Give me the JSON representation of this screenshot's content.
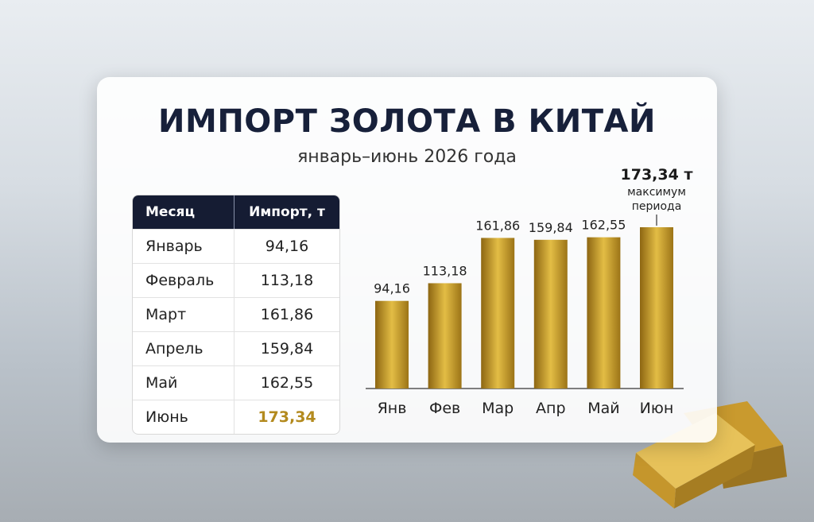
{
  "header": {
    "title": "ИМПОРТ ЗОЛОТА В КИТАЙ",
    "subtitle": "январь–июнь 2026 года"
  },
  "table": {
    "columns": [
      "Месяц",
      "Импорт, т"
    ],
    "rows": [
      [
        "Январь",
        "94,16"
      ],
      [
        "Февраль",
        "113,18"
      ],
      [
        "Март",
        "161,86"
      ],
      [
        "Апрель",
        "159,84"
      ],
      [
        "Май",
        "162,55"
      ],
      [
        "Июнь",
        "173,34"
      ]
    ]
  },
  "chart_data": {
    "type": "bar",
    "categories": [
      "Янв",
      "Фев",
      "Мар",
      "Апр",
      "Май",
      "Июн"
    ],
    "values": [
      94.16,
      113.18,
      161.86,
      159.84,
      162.55,
      173.34
    ],
    "value_labels": [
      "94,16",
      "113,18",
      "161,86",
      "159,84",
      "162,55",
      "173,34"
    ],
    "color": "#e3bd45",
    "annotation": {
      "label": "173,34 т",
      "note": "максимум периода"
    }
  }
}
